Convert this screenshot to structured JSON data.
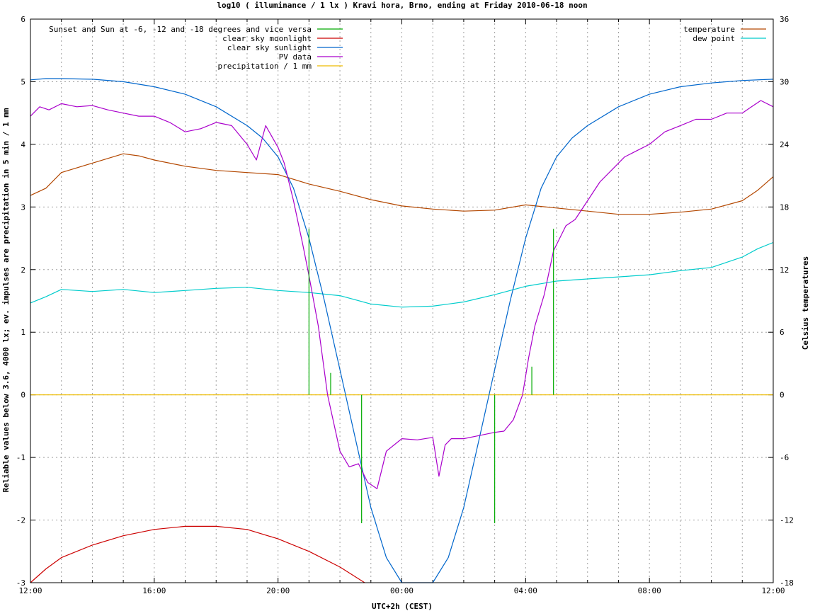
{
  "chart_data": {
    "type": "line",
    "title": "log10 ( illuminance / 1 lx ) Kravi hora, Brno, ending at Friday 2010-06-18 noon",
    "xlabel": "UTC+2h (CEST)",
    "ylabel": "Reliable values below 3.6, 4000 lx; ev. impulses are precipitation in 5 min / 1 mm",
    "y2label": "Celsius temperatures",
    "x_unit": "hours since 12:00",
    "xlim": [
      0,
      24
    ],
    "ylim": [
      -3,
      6
    ],
    "y2lim": [
      -18,
      36
    ],
    "grid": true,
    "x_ticks": [
      {
        "value": 0,
        "label": "12:00"
      },
      {
        "value": 4,
        "label": "16:00"
      },
      {
        "value": 8,
        "label": "20:00"
      },
      {
        "value": 12,
        "label": "00:00"
      },
      {
        "value": 16,
        "label": "04:00"
      },
      {
        "value": 20,
        "label": "08:00"
      },
      {
        "value": 24,
        "label": "12:00"
      }
    ],
    "y_ticks": [
      "-3",
      "-2",
      "-1",
      "0",
      "1",
      "2",
      "3",
      "4",
      "5",
      "6"
    ],
    "y2_ticks": [
      "-18",
      "-12",
      "-6",
      "0",
      "6",
      "12",
      "18",
      "24",
      "30",
      "36"
    ],
    "legend_left": {
      "placement": "top-left",
      "entries": [
        {
          "name": "Sunset and Sun at -6, -12 and -18 degrees and vice versa",
          "color": "#00aa00"
        },
        {
          "name": "clear sky moonlight",
          "color": "#cc0000"
        },
        {
          "name": "clear sky sunlight",
          "color": "#0066cc"
        },
        {
          "name": "PV data",
          "color": "#aa00cc"
        },
        {
          "name": "precipitation / 1 mm",
          "color": "#eebb00"
        }
      ]
    },
    "legend_right": {
      "placement": "top-right",
      "entries": [
        {
          "name": "temperature",
          "color": "#b34700"
        },
        {
          "name": "dew point",
          "color": "#00cccc"
        }
      ]
    },
    "series": [
      {
        "key": "sunlight",
        "axis": "y",
        "color": "#0066cc",
        "x": [
          0,
          0.5,
          1,
          2,
          3,
          4,
          5,
          6,
          7,
          7.5,
          8,
          8.5,
          9,
          9.5,
          10,
          10.5,
          11,
          11.5,
          12,
          12.5,
          13,
          13.5,
          14,
          14.5,
          15,
          15.5,
          16,
          16.5,
          17,
          17.5,
          18,
          19,
          20,
          21,
          22,
          23,
          24
        ],
        "values": [
          5.03,
          5.05,
          5.05,
          5.04,
          5.0,
          4.92,
          4.8,
          4.6,
          4.3,
          4.1,
          3.8,
          3.3,
          2.5,
          1.5,
          0.4,
          -0.7,
          -1.8,
          -2.6,
          -3.0,
          -3.1,
          -3.0,
          -2.6,
          -1.8,
          -0.7,
          0.4,
          1.5,
          2.5,
          3.3,
          3.8,
          4.1,
          4.3,
          4.6,
          4.8,
          4.92,
          4.98,
          5.02,
          5.04
        ]
      },
      {
        "key": "moonlight",
        "axis": "y",
        "color": "#cc0000",
        "x": [
          0,
          0.5,
          1,
          2,
          3,
          4,
          5,
          6,
          7,
          8,
          9,
          10,
          10.8
        ],
        "values": [
          -3.0,
          -2.78,
          -2.6,
          -2.4,
          -2.25,
          -2.15,
          -2.1,
          -2.1,
          -2.15,
          -2.3,
          -2.5,
          -2.75,
          -3.0
        ]
      },
      {
        "key": "pv",
        "axis": "y",
        "color": "#aa00cc",
        "x": [
          0,
          0.3,
          0.6,
          1,
          1.5,
          2,
          2.5,
          3,
          3.5,
          4,
          4.5,
          5,
          5.5,
          6,
          6.5,
          7,
          7.3,
          7.6,
          8,
          8.2,
          8.5,
          8.8,
          9,
          9.3,
          9.6,
          10,
          10.3,
          10.6,
          10.9,
          11.2,
          11.5,
          12,
          12.5,
          13,
          13.2,
          13.4,
          13.6,
          14,
          14.5,
          15,
          15.3,
          15.6,
          15.9,
          16.1,
          16.3,
          16.6,
          16.9,
          17.1,
          17.3,
          17.6,
          18,
          18.4,
          18.8,
          19.2,
          19.6,
          20,
          20.5,
          21,
          21.5,
          22,
          22.5,
          23,
          23.3,
          23.6,
          24
        ],
        "values": [
          4.45,
          4.6,
          4.55,
          4.65,
          4.6,
          4.62,
          4.55,
          4.5,
          4.45,
          4.45,
          4.35,
          4.2,
          4.25,
          4.35,
          4.3,
          4.0,
          3.75,
          4.3,
          3.95,
          3.7,
          3.1,
          2.4,
          1.9,
          1.1,
          0.0,
          -0.9,
          -1.15,
          -1.1,
          -1.4,
          -1.5,
          -0.9,
          -0.7,
          -0.72,
          -0.68,
          -1.3,
          -0.8,
          -0.7,
          -0.7,
          -0.65,
          -0.6,
          -0.58,
          -0.4,
          0.0,
          0.6,
          1.1,
          1.6,
          2.3,
          2.5,
          2.7,
          2.8,
          3.1,
          3.4,
          3.6,
          3.8,
          3.9,
          4.0,
          4.2,
          4.3,
          4.4,
          4.4,
          4.5,
          4.5,
          4.6,
          4.7,
          4.6
        ]
      },
      {
        "key": "temperature",
        "axis": "y2",
        "color": "#b34700",
        "x": [
          0,
          0.5,
          1,
          2,
          3,
          3.5,
          4,
          5,
          6,
          7,
          8,
          9,
          10,
          11,
          12,
          13,
          14,
          15,
          16,
          17,
          18,
          19,
          20,
          21,
          22,
          23,
          23.5,
          24
        ],
        "values": [
          19.1,
          19.8,
          21.3,
          22.2,
          23.1,
          22.9,
          22.5,
          21.9,
          21.5,
          21.3,
          21.1,
          20.2,
          19.5,
          18.7,
          18.1,
          17.8,
          17.6,
          17.7,
          18.2,
          17.9,
          17.6,
          17.3,
          17.3,
          17.5,
          17.8,
          18.6,
          19.6,
          20.9
        ]
      },
      {
        "key": "dew_point",
        "axis": "y2",
        "color": "#00cccc",
        "x": [
          0,
          0.5,
          1,
          2,
          3,
          4,
          5,
          6,
          7,
          8,
          9,
          10,
          11,
          12,
          13,
          14,
          15,
          16,
          17,
          18,
          19,
          20,
          21,
          22,
          23,
          23.5,
          24
        ],
        "values": [
          8.8,
          9.4,
          10.1,
          9.9,
          10.1,
          9.8,
          10.0,
          10.2,
          10.3,
          10.0,
          9.8,
          9.5,
          8.7,
          8.4,
          8.5,
          8.9,
          9.6,
          10.4,
          10.9,
          11.1,
          11.3,
          11.5,
          11.9,
          12.2,
          13.2,
          14.0,
          14.6
        ]
      },
      {
        "key": "precipitation",
        "axis": "y",
        "color": "#eebb00",
        "x": [
          0,
          24
        ],
        "values": [
          0,
          0
        ]
      }
    ],
    "sun_events": {
      "color": "#00aa00",
      "x": [
        9.0,
        9.7,
        10.7,
        15.0,
        16.2,
        16.9
      ],
      "y": [
        2.65,
        0.35,
        -2.05,
        -2.05,
        0.45,
        2.65
      ]
    }
  }
}
